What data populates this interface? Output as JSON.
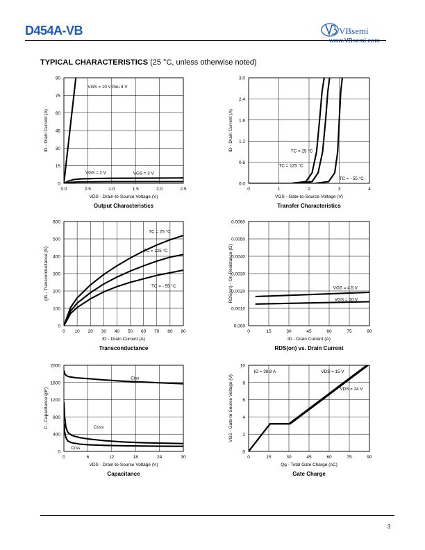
{
  "header": {
    "part_number": "D454A-VB",
    "logo_text": "VBsemi",
    "logo_url": "www.VBsemi.com",
    "brand_color": "#1f5bb8"
  },
  "section": {
    "title_bold": "TYPICAL CHARACTERISTICS",
    "title_note": " (25 °C, unless otherwise noted)"
  },
  "page_number": "3",
  "chart_data": [
    {
      "id": "output",
      "type": "line",
      "title": "Output Characteristics",
      "xlabel": "V_DS - Drain-to-Source Voltage (V)",
      "ylabel": "I_D - Drain Current (A)",
      "xlim": [
        0,
        2.5
      ],
      "ylim": [
        0,
        90
      ],
      "xticks": [
        "0.0",
        "0.5",
        "1.0",
        "1.5",
        "2.0",
        "2.5"
      ],
      "yticks": [
        "0",
        "15",
        "30",
        "45",
        "60",
        "75",
        "90"
      ],
      "grid": true,
      "series": [
        {
          "name": "VGS = 10 V thru 4 V",
          "x": [
            0,
            0.05,
            0.1,
            0.15,
            0.2,
            0.25
          ],
          "y": [
            0,
            18,
            36,
            54,
            72,
            90
          ]
        },
        {
          "name": "VGS = 2 V",
          "x": [
            0,
            0.05,
            0.15,
            0.3,
            0.6,
            1.0,
            2.5
          ],
          "y": [
            0,
            0.3,
            0.8,
            1.2,
            1.3,
            1.4,
            1.5
          ]
        },
        {
          "name": "VGS = 3 V",
          "x": [
            0,
            0.1,
            0.2,
            0.35,
            0.6,
            1.0,
            1.5,
            2.0,
            2.5
          ],
          "y": [
            0,
            2,
            3.2,
            3.8,
            4.1,
            4.3,
            4.4,
            4.5,
            4.6
          ]
        }
      ],
      "annotations": [
        {
          "text": "VGS = 10 V thru 4 V",
          "x": 0.5,
          "y": 81
        },
        {
          "text": "VGS = 2 V",
          "x": 0.45,
          "y": 8
        },
        {
          "text": "VGS = 3 V",
          "x": 1.45,
          "y": 7.5
        }
      ]
    },
    {
      "id": "transfer",
      "type": "line",
      "title": "Transfer Characteristics",
      "xlabel": "V_GS - Gate-to-Source Voltage (V)",
      "ylabel": "I_D - Drain Current (A)",
      "xlim": [
        0,
        4
      ],
      "ylim": [
        0,
        3.0
      ],
      "xticks": [
        "0",
        "1",
        "2",
        "3",
        "4"
      ],
      "yticks": [
        "0.0",
        "0.6",
        "1.2",
        "1.8",
        "2.4",
        "3.0"
      ],
      "grid": true,
      "series": [
        {
          "name": "TC = 25 °C",
          "x": [
            0,
            1.6,
            2.1,
            2.3,
            2.45,
            2.55,
            2.62,
            2.68
          ],
          "y": [
            0,
            0,
            0.05,
            0.3,
            0.9,
            1.8,
            2.6,
            3.0
          ]
        },
        {
          "name": "TC = 125 °C",
          "x": [
            0,
            1.4,
            1.9,
            2.1,
            2.25,
            2.35,
            2.43,
            2.5
          ],
          "y": [
            0,
            0,
            0.05,
            0.3,
            0.9,
            1.8,
            2.6,
            3.0
          ]
        },
        {
          "name": "TC = - 55 °C",
          "x": [
            0,
            2.2,
            2.65,
            2.85,
            2.95,
            3.0,
            3.05,
            3.1
          ],
          "y": [
            0,
            0,
            0.05,
            0.3,
            0.9,
            1.8,
            2.6,
            3.0
          ]
        }
      ],
      "annotations": [
        {
          "text": "TC = 25 °C",
          "x": 1.4,
          "y": 0.88
        },
        {
          "text": "TC = 125 °C",
          "x": 1.0,
          "y": 0.46
        },
        {
          "text": "TC = - 55 °C",
          "x": 3.0,
          "y": 0.1
        }
      ]
    },
    {
      "id": "transconductance",
      "type": "line",
      "title": "Transconductance",
      "xlabel": "I_D - Drain Current (A)",
      "ylabel": "g_fs - Transconductance (S)",
      "xlim": [
        0,
        90
      ],
      "ylim": [
        0,
        600
      ],
      "xticks": [
        "0",
        "10",
        "20",
        "30",
        "40",
        "50",
        "60",
        "70",
        "80",
        "90"
      ],
      "yticks": [
        "0",
        "100",
        "200",
        "300",
        "400",
        "500",
        "600"
      ],
      "grid": true,
      "series": [
        {
          "name": "TC = 25 °C",
          "x": [
            0,
            5,
            10,
            20,
            30,
            40,
            50,
            60,
            70,
            80,
            90
          ],
          "y": [
            0,
            105,
            160,
            235,
            295,
            345,
            390,
            430,
            465,
            495,
            520
          ]
        },
        {
          "name": "TC = 125 °C",
          "x": [
            0,
            5,
            10,
            20,
            30,
            40,
            50,
            60,
            70,
            80,
            90
          ],
          "y": [
            0,
            85,
            130,
            190,
            240,
            280,
            315,
            345,
            372,
            395,
            410
          ]
        },
        {
          "name": "TC = - 55 °C",
          "x": [
            0,
            5,
            10,
            20,
            30,
            40,
            50,
            60,
            70,
            80,
            90
          ],
          "y": [
            0,
            70,
            105,
            155,
            195,
            225,
            250,
            270,
            290,
            305,
            320
          ]
        }
      ],
      "annotations": [
        {
          "text": "TC = 25 °C",
          "x": 64,
          "y": 535
        },
        {
          "text": "TC = 125 °C",
          "x": 60,
          "y": 425
        },
        {
          "text": "TC = - 55 °C",
          "x": 66,
          "y": 220
        }
      ]
    },
    {
      "id": "rdson",
      "type": "line",
      "title": "RDS(on) vs. Drain Current",
      "xlabel": "I_D - Drain Current (A)",
      "ylabel": "R_DS(on) - On-Resistance (Ω)",
      "xlim": [
        0,
        90
      ],
      "ylim": [
        0,
        0.006
      ],
      "xticks": [
        "0",
        "15",
        "30",
        "45",
        "60",
        "75",
        "90"
      ],
      "yticks": [
        "0.000",
        "0.0010",
        "0.0020",
        "0.0030",
        "0.0040",
        "0.0050",
        "0.0060"
      ],
      "grid": true,
      "series": [
        {
          "name": "VGS = 4.5 V",
          "x": [
            5,
            90
          ],
          "y": [
            0.00168,
            0.00192
          ]
        },
        {
          "name": "VGS = 10 V",
          "x": [
            5,
            90
          ],
          "y": [
            0.00125,
            0.00138
          ]
        }
      ],
      "annotations": [
        {
          "text": "VGS = 4.5 V",
          "x": 63,
          "y": 0.0021
        },
        {
          "text": "VGS = 10 V",
          "x": 64,
          "y": 0.00142
        }
      ]
    },
    {
      "id": "capacitance",
      "type": "line",
      "title": "Capacitance",
      "xlabel": "V_DS - Drain-to-Source Voltage (V)",
      "ylabel": "C - Capacitance (pF)",
      "xlim": [
        0,
        30
      ],
      "ylim": [
        0,
        2000
      ],
      "xticks": [
        "0",
        "6",
        "12",
        "18",
        "24",
        "30"
      ],
      "yticks": [
        "0",
        "400",
        "800",
        "1200",
        "1600",
        "2000"
      ],
      "grid": true,
      "series": [
        {
          "name": "Ciss",
          "x": [
            0,
            0.3,
            0.8,
            1.5,
            3,
            6,
            10,
            15,
            20,
            25,
            30
          ],
          "y": [
            1880,
            1790,
            1750,
            1730,
            1710,
            1690,
            1660,
            1630,
            1610,
            1590,
            1570
          ]
        },
        {
          "name": "Coss",
          "x": [
            0,
            0.2,
            0.5,
            1,
            2,
            4,
            6,
            10,
            15,
            20,
            25,
            30
          ],
          "y": [
            1150,
            800,
            560,
            440,
            370,
            320,
            290,
            250,
            220,
            200,
            190,
            180
          ]
        },
        {
          "name": "Crss",
          "x": [
            0,
            0.2,
            0.5,
            1,
            2,
            4,
            6,
            10,
            15,
            20,
            25,
            30
          ],
          "y": [
            650,
            450,
            320,
            240,
            200,
            170,
            155,
            140,
            130,
            125,
            120,
            118
          ]
        }
      ],
      "annotations": [
        {
          "text": "Ciss",
          "x": 16.8,
          "y": 1670
        },
        {
          "text": "Coss",
          "x": 7.5,
          "y": 530
        },
        {
          "text": "Crss",
          "x": 1.8,
          "y": 50
        }
      ]
    },
    {
      "id": "gatecharge",
      "type": "line",
      "title": "Gate Charge",
      "xlabel": "Q_g - Total Gate Charge (nC)",
      "ylabel": "V_GS - Gate-to-Source Voltage (V)",
      "xlim": [
        0,
        90
      ],
      "ylim": [
        0,
        10
      ],
      "xticks": [
        "0",
        "15",
        "30",
        "45",
        "60",
        "75",
        "90"
      ],
      "yticks": [
        "0",
        "2",
        "4",
        "6",
        "8",
        "10"
      ],
      "grid": true,
      "series": [
        {
          "name": "VDS = 15 V",
          "x": [
            0,
            16,
            30,
            88
          ],
          "y": [
            0,
            3.2,
            3.2,
            10
          ]
        },
        {
          "name": "VDS = 24 V",
          "x": [
            0,
            16,
            31,
            89
          ],
          "y": [
            0,
            3.2,
            3.2,
            10
          ]
        }
      ],
      "annotations": [
        {
          "text": "ID = 38.8 A",
          "x": 4,
          "y": 9.1
        },
        {
          "text": "VDS = 15 V",
          "x": 54,
          "y": 9.1
        },
        {
          "text": "VDS = 24 V",
          "x": 68,
          "y": 7.1
        }
      ]
    }
  ]
}
